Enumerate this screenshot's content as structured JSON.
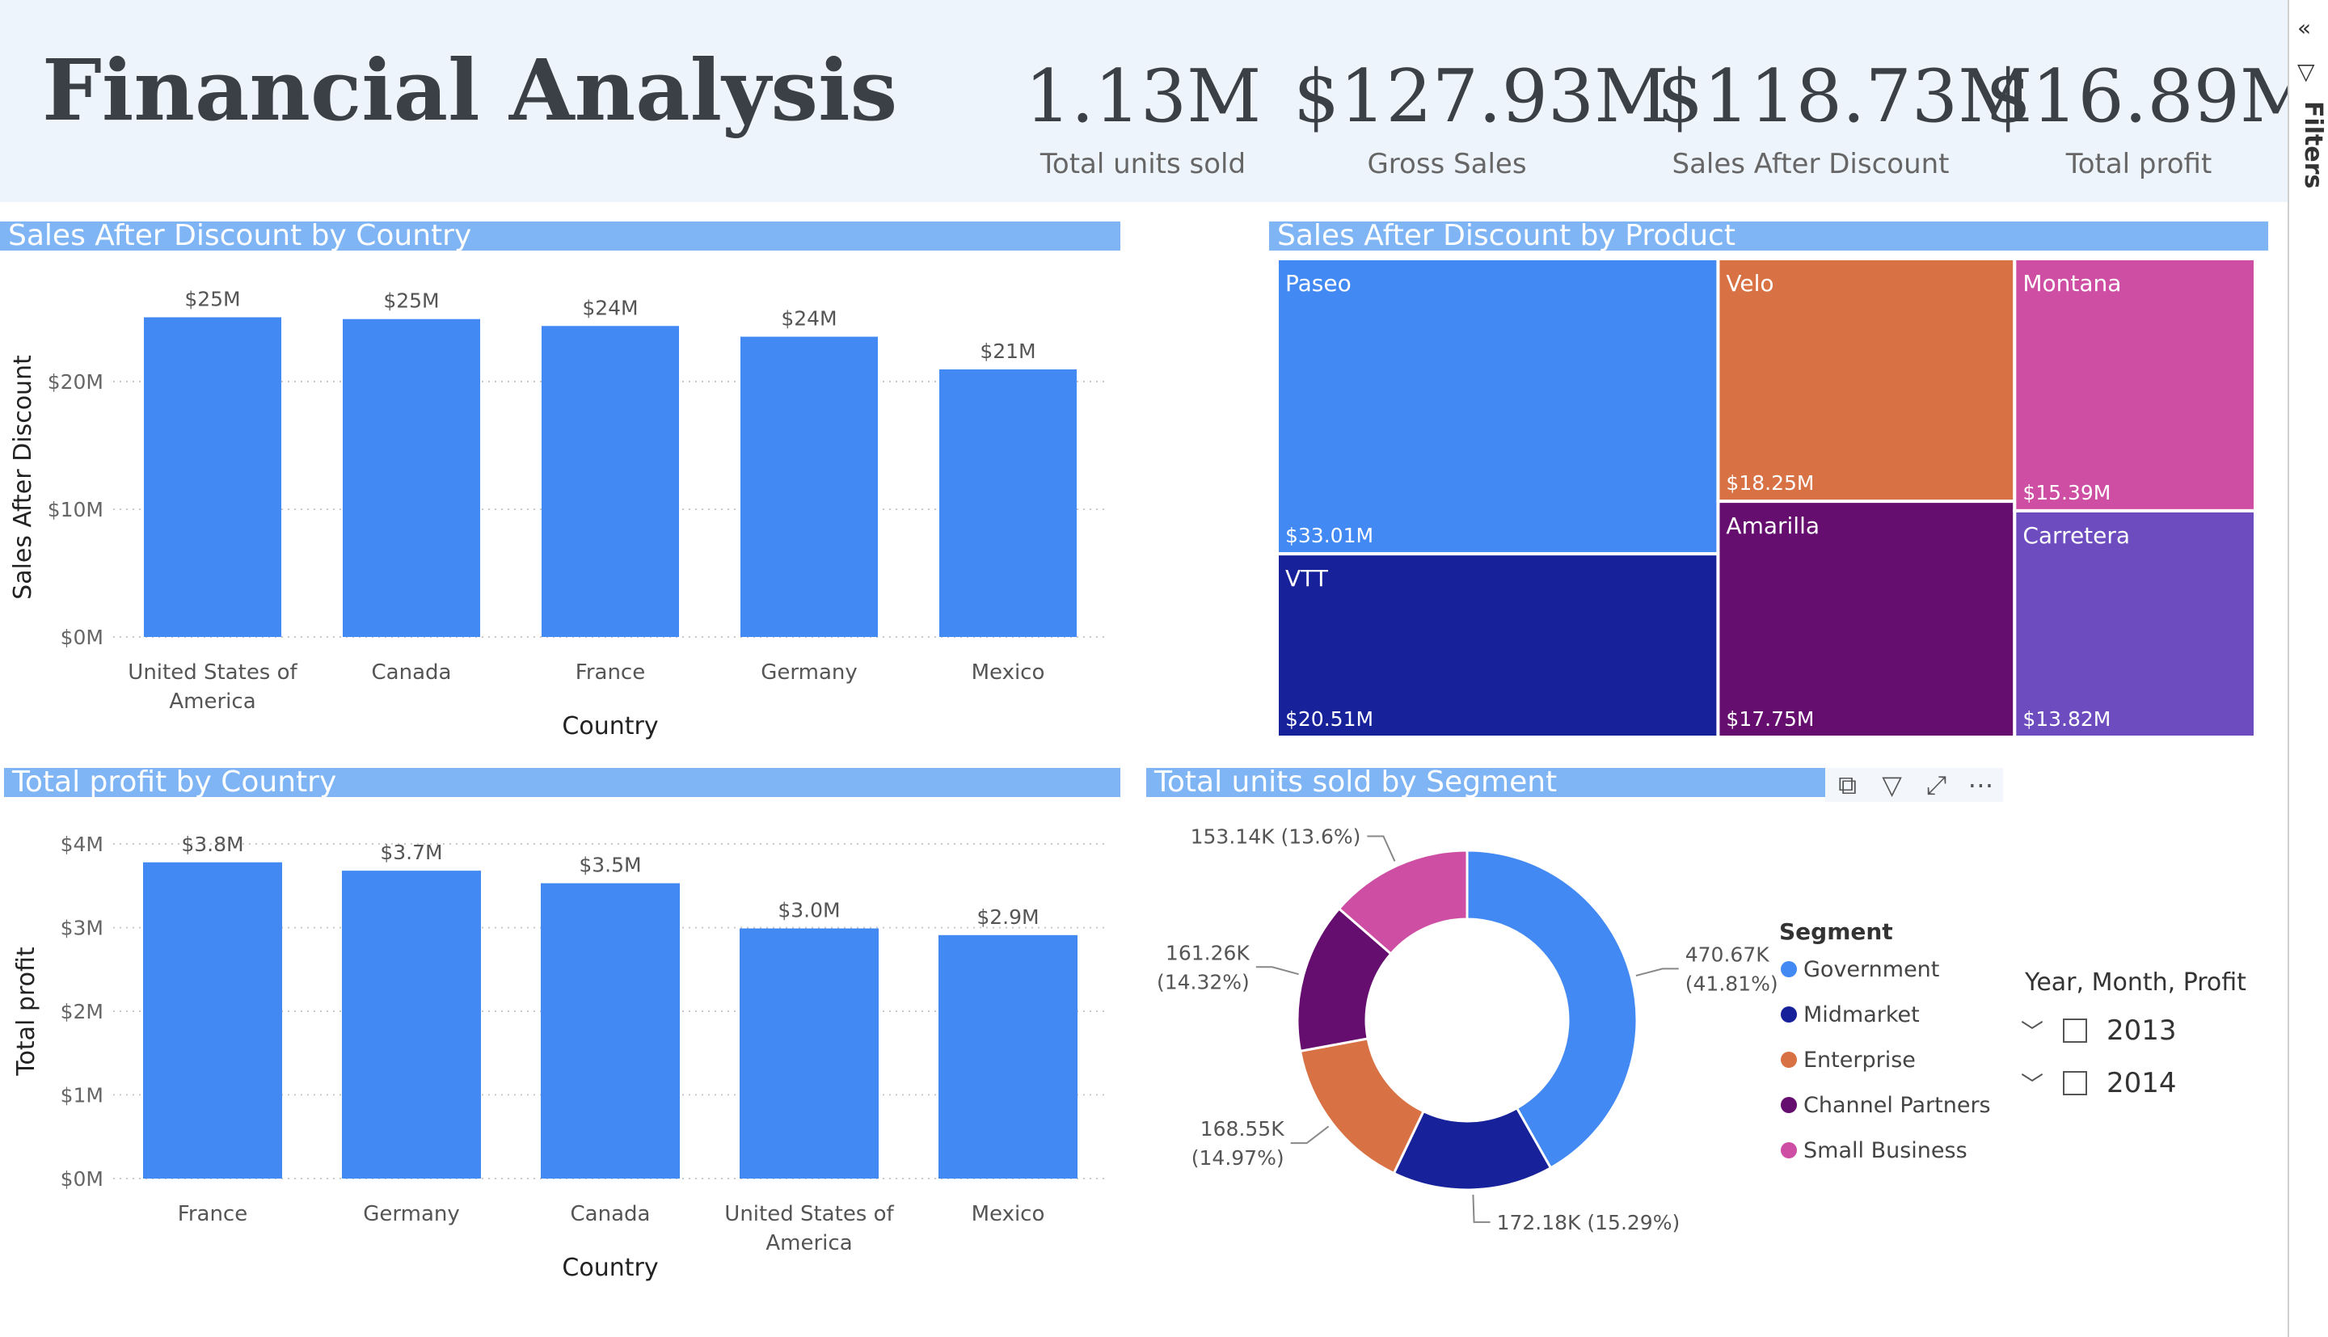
{
  "header": {
    "title": "Financial Analysis",
    "kpis": [
      {
        "value": "1.13M",
        "label": "Total units sold"
      },
      {
        "value": "$127.93M",
        "label": "Gross Sales"
      },
      {
        "value": "$118.73M",
        "label": "Sales After Discount"
      },
      {
        "value": "$16.89M",
        "label": "Total profit"
      }
    ]
  },
  "filters_pane": {
    "label": "Filters",
    "icons": [
      "collapse-icon",
      "filter-icon"
    ]
  },
  "visual_toolbar": {
    "icons": [
      "copy-icon",
      "filter-icon",
      "focus-mode-icon",
      "more-options-icon"
    ]
  },
  "slicer": {
    "title": "Year, Month, Profit",
    "items": [
      {
        "label": "2013",
        "checked": false,
        "expanded": false
      },
      {
        "label": "2014",
        "checked": false,
        "expanded": false
      }
    ]
  },
  "colors": {
    "bar": "#4289f3",
    "panel_title_bg": "#7fb4f5",
    "header_bg": "#eef4fc"
  },
  "chart_data": [
    {
      "type": "bar",
      "title": "Sales After Discount by Country",
      "xlabel": "Country",
      "ylabel": "Sales After Discount",
      "categories": [
        [
          "United States of",
          "America"
        ],
        [
          "Canada"
        ],
        [
          "France"
        ],
        [
          "Germany"
        ],
        [
          "Mexico"
        ]
      ],
      "values": [
        25.03,
        24.89,
        24.35,
        23.51,
        20.95
      ],
      "data_labels": [
        "$25M",
        "$25M",
        "$24M",
        "$24M",
        "$21M"
      ],
      "ylim": [
        0,
        25
      ],
      "yticks": [
        0,
        10,
        20
      ],
      "ytick_labels": [
        "$0M",
        "$10M",
        "$20M"
      ],
      "grid": true
    },
    {
      "type": "treemap",
      "title": "Sales After Discount by Product",
      "items": [
        {
          "name": "Paseo",
          "value": 33.01,
          "label": "$33.01M",
          "color": "#4289f3"
        },
        {
          "name": "VTT",
          "value": 20.51,
          "label": "$20.51M",
          "color": "#16219a"
        },
        {
          "name": "Velo",
          "value": 18.25,
          "label": "$18.25M",
          "color": "#d87143"
        },
        {
          "name": "Amarilla",
          "value": 17.75,
          "label": "$17.75M",
          "color": "#650e6f"
        },
        {
          "name": "Montana",
          "value": 15.39,
          "label": "$15.39M",
          "color": "#cd4ea3"
        },
        {
          "name": "Carretera",
          "value": 13.82,
          "label": "$13.82M",
          "color": "#6c4cbe"
        }
      ]
    },
    {
      "type": "bar",
      "title": "Total profit by Country",
      "xlabel": "Country",
      "ylabel": "Total profit",
      "categories": [
        [
          "France"
        ],
        [
          "Germany"
        ],
        [
          "Canada"
        ],
        [
          "United States of",
          "America"
        ],
        [
          "Mexico"
        ]
      ],
      "values": [
        3.78,
        3.68,
        3.53,
        2.99,
        2.91
      ],
      "data_labels": [
        "$3.8M",
        "$3.7M",
        "$3.5M",
        "$3.0M",
        "$2.9M"
      ],
      "ylim": [
        0,
        4
      ],
      "yticks": [
        0,
        1,
        2,
        3,
        4
      ],
      "ytick_labels": [
        "$0M",
        "$1M",
        "$2M",
        "$3M",
        "$4M"
      ],
      "grid": true
    },
    {
      "type": "pie",
      "donut": true,
      "title": "Total units sold by Segment",
      "legend_title": "Segment",
      "legend_position": "right",
      "series": [
        {
          "name": "Government",
          "value": 470.67,
          "label": [
            "470.67K",
            "(41.81%)"
          ],
          "color": "#4289f3"
        },
        {
          "name": "Midmarket",
          "value": 172.18,
          "label": [
            "172.18K (15.29%)"
          ],
          "color": "#16219a"
        },
        {
          "name": "Enterprise",
          "value": 168.55,
          "label": [
            "168.55K",
            "(14.97%)"
          ],
          "color": "#d87143"
        },
        {
          "name": "Channel Partners",
          "value": 161.26,
          "label": [
            "161.26K",
            "(14.32%)"
          ],
          "color": "#650e6f"
        },
        {
          "name": "Small Business",
          "value": 153.14,
          "label": [
            "153.14K (13.6%)"
          ],
          "color": "#cd4ea3"
        }
      ]
    }
  ]
}
